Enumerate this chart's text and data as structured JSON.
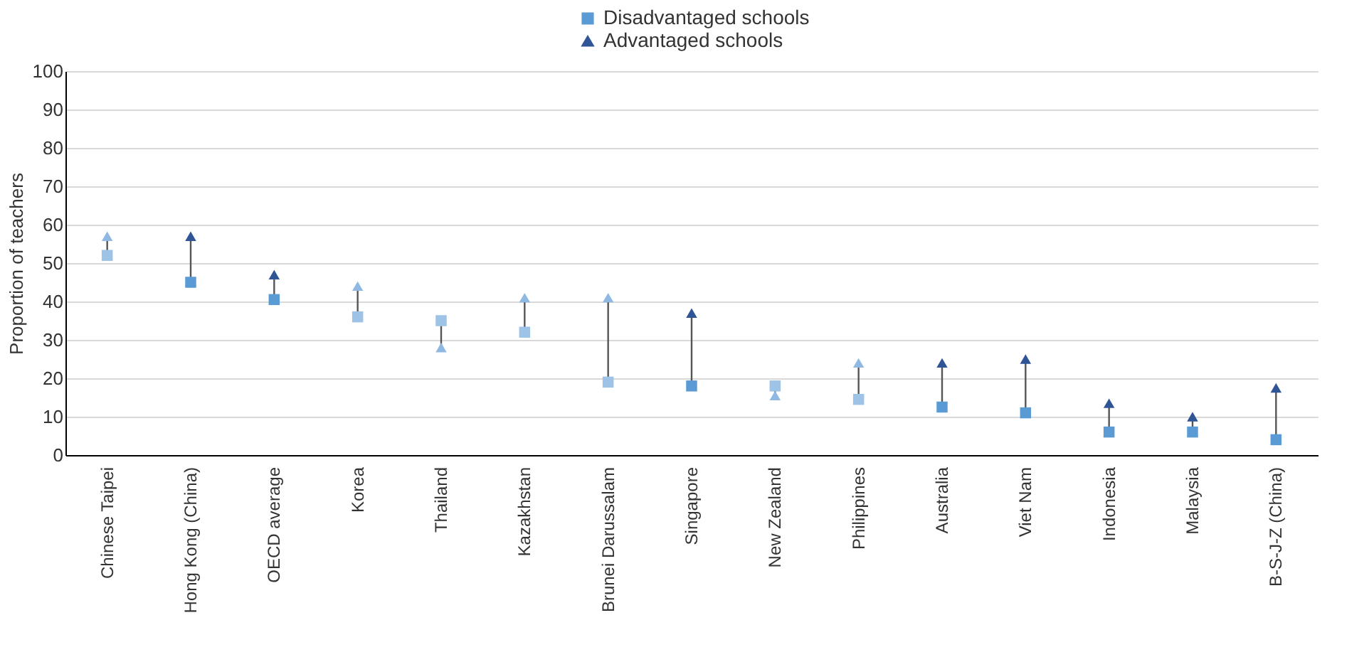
{
  "chart_data": {
    "type": "scatter",
    "categories": [
      "Chinese Taipei",
      "Hong Kong (China)",
      "OECD average",
      "Korea",
      "Thailand",
      "Kazakhstan",
      "Brunei Darussalam",
      "Singapore",
      "New Zealand",
      "Philippines",
      "Australia",
      "Viet Nam",
      "Indonesia",
      "Malaysia",
      "B-S-J-Z (China)"
    ],
    "series": [
      {
        "name": "Disadvantaged schools",
        "marker": "square",
        "color": "#5b9bd5",
        "colors": [
          "#9dc3e6",
          "#5b9bd5",
          "#5b9bd5",
          "#9dc3e6",
          "#9dc3e6",
          "#9dc3e6",
          "#9dc3e6",
          "#5b9bd5",
          "#9dc3e6",
          "#9dc3e6",
          "#5b9bd5",
          "#5b9bd5",
          "#5b9bd5",
          "#5b9bd5",
          "#5b9bd5"
        ],
        "values": [
          52,
          45,
          40.5,
          36,
          35,
          32,
          19,
          18,
          18,
          14.5,
          12.5,
          11,
          6,
          6,
          4
        ]
      },
      {
        "name": "Advantaged schools",
        "marker": "triangle",
        "color": "#2f5597",
        "colors": [
          "#8fb8e3",
          "#2f5597",
          "#2f5597",
          "#8fb8e3",
          "#8fb8e3",
          "#8fb8e3",
          "#8fb8e3",
          "#2f5597",
          "#8fb8e3",
          "#8fb8e3",
          "#2f5597",
          "#2f5597",
          "#2f5597",
          "#2f5597",
          "#2f5597"
        ],
        "values": [
          57,
          57,
          47,
          44,
          28,
          41,
          41,
          37,
          15.5,
          24,
          24,
          25,
          13.5,
          10,
          17.5
        ]
      }
    ],
    "ylabel": "Proportion of teachers",
    "ylim": [
      0,
      100
    ],
    "yticks": [
      0,
      10,
      20,
      30,
      40,
      50,
      60,
      70,
      80,
      90,
      100
    ],
    "grid": "y",
    "legend": "top"
  }
}
